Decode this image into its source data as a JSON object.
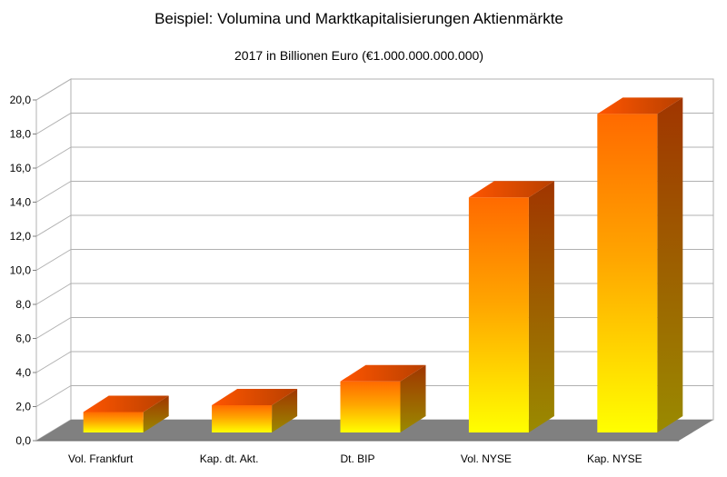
{
  "chart_data": {
    "type": "bar",
    "title": "Beispiel: Volumina und Marktkapitalisierungen Aktienmärkte",
    "subtitle": "2017 in Billionen Euro (€1.000.000.000.000)",
    "categories": [
      "Vol. Frankfurt",
      "Kap. dt. Akt.",
      "Dt. BIP",
      "Vol. NYSE",
      "Kap. NYSE"
    ],
    "values": [
      1.2,
      1.6,
      3.0,
      13.8,
      18.7
    ],
    "ylim": [
      0,
      20
    ],
    "yticks": [
      "0,0",
      "2,0",
      "4,0",
      "6,0",
      "8,0",
      "10,0",
      "12,0",
      "14,0",
      "16,0",
      "18,0",
      "20,0"
    ],
    "grid": true,
    "legend": "none",
    "style": "3d",
    "colors": {
      "bar_top": "#ffff00",
      "bar_mid": "#ffa500",
      "bar_bottom": "#ff6a00",
      "bar_side": "#a03500",
      "floor": "#808080",
      "wall": "#ffffff",
      "grid": "#b0b0b0"
    }
  }
}
